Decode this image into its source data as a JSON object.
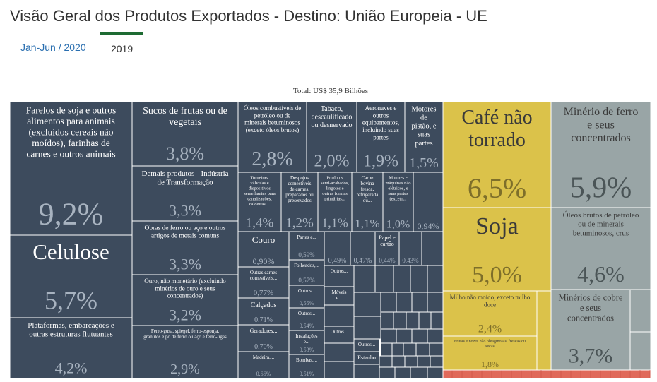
{
  "header": {
    "title": "Visão Geral dos Produtos Exportados - Destino: União Europeia - UE"
  },
  "tabs": [
    {
      "label": "Jan-Jun / 2020",
      "active": false
    },
    {
      "label": "2019",
      "active": true
    }
  ],
  "colors": {
    "dark": "#3d4b5d",
    "yellow": "#dbc24a",
    "gray": "#99a5a6",
    "red": "#e0695a",
    "border": "#ffffff"
  },
  "chart_data": {
    "type": "treemap",
    "title": "Total: US$ 35,9 Bilhões",
    "groups": [
      {
        "name": "dark",
        "color": "#3d4b5d"
      },
      {
        "name": "yellow",
        "color": "#dbc24a"
      },
      {
        "name": "gray",
        "color": "#99a5a6"
      },
      {
        "name": "red",
        "color": "#e0695a"
      }
    ],
    "items": [
      {
        "label": "Farelos de soja e outros alimentos para animais (excluídos cereais não moídos), farinhas de carnes e outros animais",
        "value": "9,2%",
        "group": "dark"
      },
      {
        "label": "Celulose",
        "value": "5,7%",
        "group": "dark"
      },
      {
        "label": "Plataformas, embarcações e outras estruturas flutuantes",
        "value": "4,2%",
        "group": "dark"
      },
      {
        "label": "Sucos de frutas ou de vegetais",
        "value": "3,8%",
        "group": "dark"
      },
      {
        "label": "Demais produtos - Indústria de Transformação",
        "value": "3,3%",
        "group": "dark"
      },
      {
        "label": "Obras de ferro ou aço e outros artigos de metais comuns",
        "value": "3,3%",
        "group": "dark"
      },
      {
        "label": "Ouro, não monetário (excluindo minérios de ouro e seus concentrados)",
        "value": "3,2%",
        "group": "dark"
      },
      {
        "label": "Ferro-gusa, spiegel, ferro-esponja, grânulos e pó de ferro ou aço e ferro-ligas",
        "value": "2,9%",
        "group": "dark"
      },
      {
        "label": "Óleos combustíveis de petróleo ou de minerais betuminosos (exceto óleos brutos)",
        "value": "2,8%",
        "group": "dark"
      },
      {
        "label": "Tabaco, descaulificado ou desnervado",
        "value": "2,0%",
        "group": "dark"
      },
      {
        "label": "Aeronaves e outros equipamentos, incluindo suas partes",
        "value": "1,9%",
        "group": "dark"
      },
      {
        "label": "Motores de pistão, e suas partes",
        "value": "1,5%",
        "group": "dark"
      },
      {
        "label": "Torneiras, válvulas e dispositivos semelhantes para canalizações, caldeiras,...",
        "value": "1,4%",
        "group": "dark"
      },
      {
        "label": "Despojos comestíveis de carnes, preparados ou preservados",
        "value": "1,2%",
        "group": "dark"
      },
      {
        "label": "Produtos semi-acabados, lingotes e outras formas primárias...",
        "value": "1,1%",
        "group": "dark"
      },
      {
        "label": "Carne bovina fresca, refrigerada ou...",
        "value": "1,1%",
        "group": "dark"
      },
      {
        "label": "Motores e máquinas não elétricos, e suas partes (exceto...",
        "value": "1,0%",
        "group": "dark"
      },
      {
        "label": "",
        "value": "0,94%",
        "group": "dark"
      },
      {
        "label": "Couro",
        "value": "0,90%",
        "group": "dark"
      },
      {
        "label": "Outras carnes comestíveis...",
        "value": "0,77%",
        "group": "dark"
      },
      {
        "label": "Calçados",
        "value": "0,71%",
        "group": "dark"
      },
      {
        "label": "Geradores...",
        "value": "0,70%",
        "group": "dark"
      },
      {
        "label": "Madeira,...",
        "value": "0,66%",
        "group": "dark"
      },
      {
        "label": "Partes e...",
        "value": "0,59%",
        "group": "dark"
      },
      {
        "label": "Folheados,...",
        "value": "0,57%",
        "group": "dark"
      },
      {
        "label": "Outros...",
        "value": "0,55%",
        "group": "dark"
      },
      {
        "label": "Outros...",
        "value": "0,54%",
        "group": "dark"
      },
      {
        "label": "Instalações e...",
        "value": "0,53%",
        "group": "dark"
      },
      {
        "label": "Bombas,...",
        "value": "0,51%",
        "group": "dark"
      },
      {
        "label": "",
        "value": "0,49%",
        "group": "dark"
      },
      {
        "label": "",
        "value": "0,47%",
        "group": "dark"
      },
      {
        "label": "Papel e cartão",
        "value": "0,44%",
        "group": "dark"
      },
      {
        "label": "",
        "value": "0,43%",
        "group": "dark"
      },
      {
        "label": "Outros...",
        "value": "",
        "group": "dark"
      },
      {
        "label": "Móveis e...",
        "value": "",
        "group": "dark"
      },
      {
        "label": "Outros...",
        "value": "",
        "group": "dark"
      },
      {
        "label": "Outros...",
        "value": "",
        "group": "dark"
      },
      {
        "label": "Estanho",
        "value": "",
        "group": "dark"
      },
      {
        "label": "Café não torrado",
        "value": "6,5%",
        "group": "yellow"
      },
      {
        "label": "Soja",
        "value": "5,0%",
        "group": "yellow"
      },
      {
        "label": "Milho não moído, exceto milho doce",
        "value": "2,4%",
        "group": "yellow"
      },
      {
        "label": "Frutas e nozes não oleaginosas, frescas ou secas",
        "value": "1,8%",
        "group": "yellow"
      },
      {
        "label": "Minério de ferro e seus concentrados",
        "value": "5,9%",
        "group": "gray"
      },
      {
        "label": "Óleos brutos de petróleo ou de minerais betuminosos, crus",
        "value": "4,6%",
        "group": "gray"
      },
      {
        "label": "Minérios de cobre e seus concentrados",
        "value": "3,7%",
        "group": "gray"
      }
    ]
  }
}
